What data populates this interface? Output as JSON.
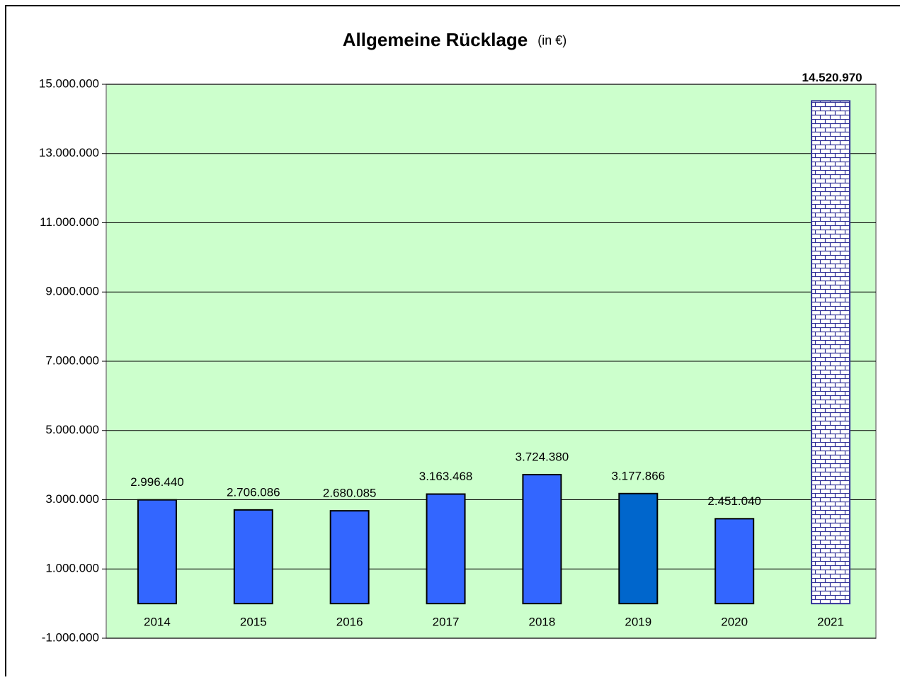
{
  "chart_data": {
    "type": "bar",
    "title": "Allgemeine Rücklage",
    "title_unit": "(in €)",
    "categories": [
      "2014",
      "2015",
      "2016",
      "2017",
      "2018",
      "2019",
      "2020",
      "2021"
    ],
    "values": [
      2996440,
      2706086,
      2680085,
      3163468,
      3724380,
      3177866,
      2451040,
      14520970
    ],
    "value_labels": [
      "2.996.440",
      "2.706.086",
      "2.680.085",
      "3.163.468",
      "3.724.380",
      "3.177.866",
      "2.451.040",
      "14.520.970"
    ],
    "colors": [
      "#3366ff",
      "#3366ff",
      "#3366ff",
      "#3366ff",
      "#3366ff",
      "#0066cc",
      "#3366ff",
      "#333399"
    ],
    "bar_styles": [
      "solid",
      "solid",
      "solid",
      "solid",
      "solid",
      "solid",
      "solid",
      "brick"
    ],
    "ylim": [
      -1000000,
      15000000
    ],
    "yticks": [
      {
        "value": -1000000,
        "label": "-1.000.000"
      },
      {
        "value": 1000000,
        "label": "1.000.000"
      },
      {
        "value": 3000000,
        "label": "3.000.000"
      },
      {
        "value": 5000000,
        "label": "5.000.000"
      },
      {
        "value": 7000000,
        "label": "7.000.000"
      },
      {
        "value": 9000000,
        "label": "9.000.000"
      },
      {
        "value": 11000000,
        "label": "11.000.000"
      },
      {
        "value": 13000000,
        "label": "13.000.000"
      },
      {
        "value": 15000000,
        "label": "15.000.000"
      }
    ],
    "grid": true,
    "plot_background": "#ccffcc"
  }
}
